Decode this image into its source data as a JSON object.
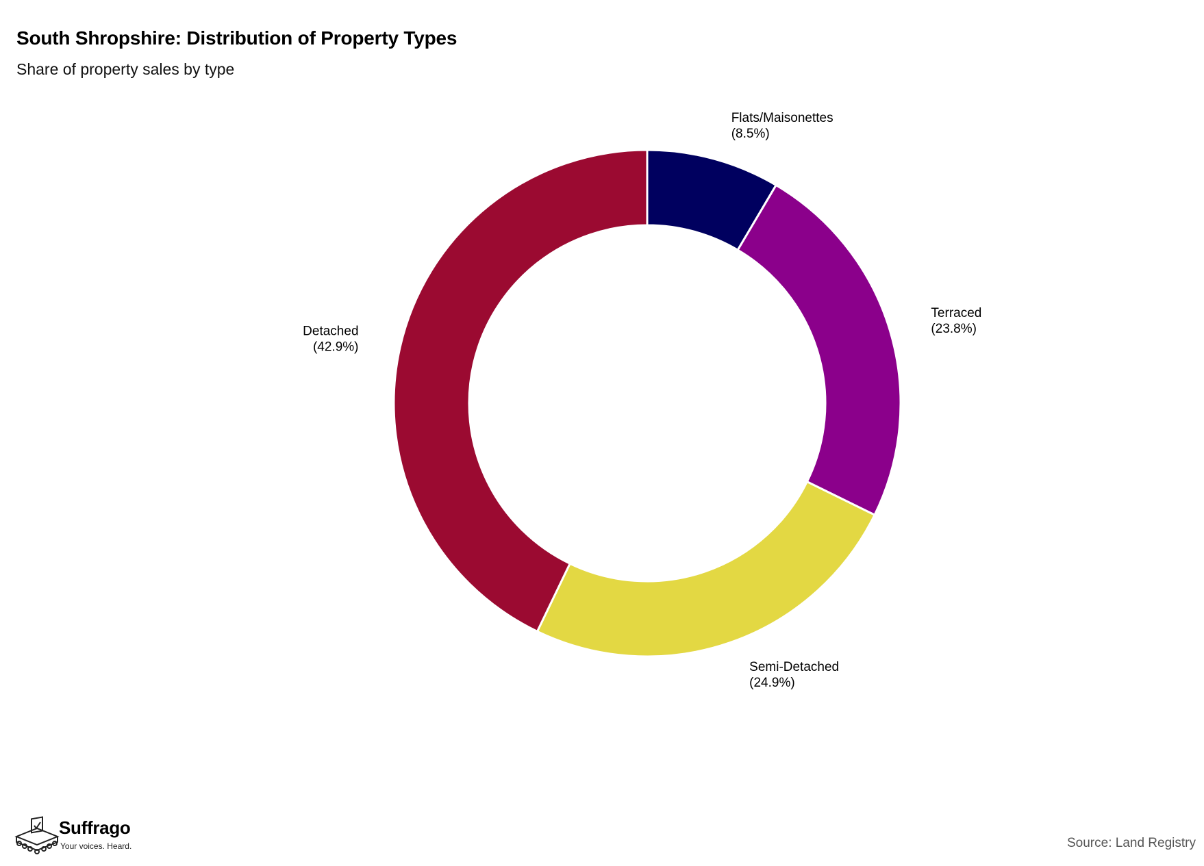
{
  "header": {
    "title": "South Shropshire: Distribution of Property Types",
    "subtitle": "Share of property sales by type"
  },
  "chart_data": {
    "type": "pie",
    "variant": "donut",
    "title": "South Shropshire: Distribution of Property Types",
    "subtitle": "Share of property sales by type",
    "start": "12 o'clock, clockwise",
    "slices": [
      {
        "label": "Flats/Maisonettes",
        "value": 8.5,
        "display": "(8.5%)",
        "color": "#00005f"
      },
      {
        "label": "Terraced",
        "value": 23.8,
        "display": "(23.8%)",
        "color": "#8b008b"
      },
      {
        "label": "Semi-Detached",
        "value": 24.9,
        "display": "(24.9%)",
        "color": "#e3d843"
      },
      {
        "label": "Detached",
        "value": 42.9,
        "display": "(42.9%)",
        "color": "#9b0a31"
      }
    ]
  },
  "footer": {
    "brand_name": "Suffrago",
    "brand_tagline": "Your voices. Heard.",
    "brand_icon": "ballot-box-crowd-icon",
    "source": "Source: Land Registry"
  }
}
